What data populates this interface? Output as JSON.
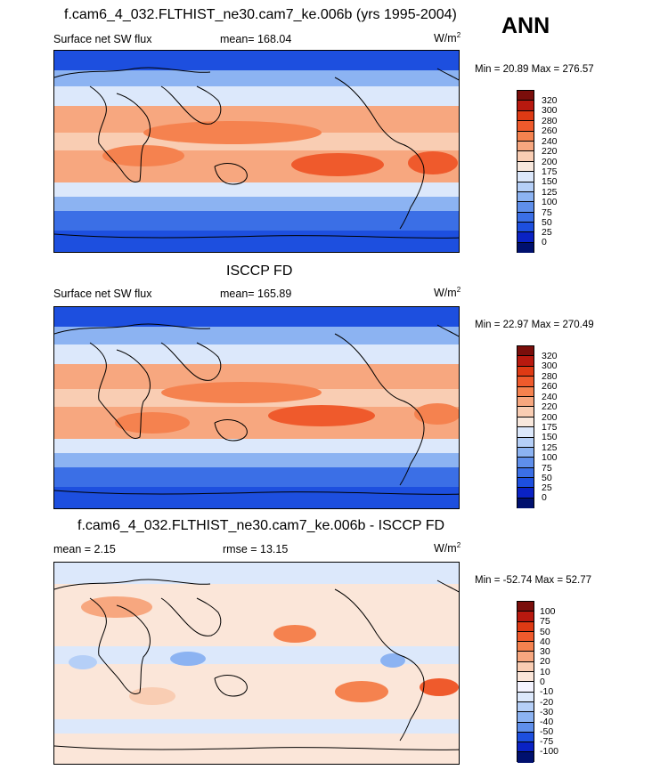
{
  "season": "ANN",
  "chart_data": [
    {
      "type": "heatmap",
      "title": "f.cam6_4_032.FLTHIST_ne30.cam7_ke.006b (yrs 1995-2004)",
      "variable": "Surface net SW flux",
      "mean_label": "mean= 168.04",
      "units": "W/m",
      "units_exp": "2",
      "minmax_label": "Min =  20.89 Max = 276.57",
      "min": 20.89,
      "max": 276.57,
      "mean": 168.04,
      "levels": [
        "320",
        "300",
        "280",
        "260",
        "240",
        "220",
        "200",
        "175",
        "150",
        "125",
        "100",
        "75",
        "50",
        "25",
        "0"
      ],
      "colors": [
        "#7a0e0b",
        "#b8190f",
        "#de3a14",
        "#ef5a2c",
        "#f5824f",
        "#f7a77f",
        "#f9cdb3",
        "#f8e8dd",
        "#dce8fb",
        "#b5cff7",
        "#8cb3f2",
        "#5f8feb",
        "#3b6fe6",
        "#1d4fdf",
        "#0a22c4",
        "#00106e"
      ]
    },
    {
      "type": "heatmap",
      "title": "ISCCP FD",
      "variable": "Surface net SW flux",
      "mean_label": "mean= 165.89",
      "units": "W/m",
      "units_exp": "2",
      "minmax_label": "Min =  22.97 Max = 270.49",
      "min": 22.97,
      "max": 270.49,
      "mean": 165.89,
      "levels": [
        "320",
        "300",
        "280",
        "260",
        "240",
        "220",
        "200",
        "175",
        "150",
        "125",
        "100",
        "75",
        "50",
        "25",
        "0"
      ],
      "colors": [
        "#7a0e0b",
        "#b8190f",
        "#de3a14",
        "#ef5a2c",
        "#f5824f",
        "#f7a77f",
        "#f9cdb3",
        "#f8e8dd",
        "#dce8fb",
        "#b5cff7",
        "#8cb3f2",
        "#5f8feb",
        "#3b6fe6",
        "#1d4fdf",
        "#0a22c4",
        "#00106e"
      ]
    },
    {
      "type": "heatmap",
      "title": "f.cam6_4_032.FLTHIST_ne30.cam7_ke.006b - ISCCP FD",
      "mean_label": "mean =   2.15",
      "rmse_label": "rmse =  13.15",
      "units": "W/m",
      "units_exp": "2",
      "minmax_label": "Min = -52.74 Max =  52.77",
      "min": -52.74,
      "max": 52.77,
      "mean": 2.15,
      "rmse": 13.15,
      "levels": [
        "100",
        "75",
        "50",
        "40",
        "30",
        "20",
        "10",
        "0",
        "-10",
        "-20",
        "-30",
        "-40",
        "-50",
        "-75",
        "-100"
      ],
      "colors": [
        "#7a0e0b",
        "#b8190f",
        "#de3a14",
        "#ef5a2c",
        "#f5824f",
        "#f7a77f",
        "#f9cdb3",
        "#fbe6d9",
        "#f4f4ff",
        "#dce8fb",
        "#b5cff7",
        "#8cb3f2",
        "#5f8feb",
        "#1d4fdf",
        "#0a22c4",
        "#00106e"
      ]
    }
  ]
}
